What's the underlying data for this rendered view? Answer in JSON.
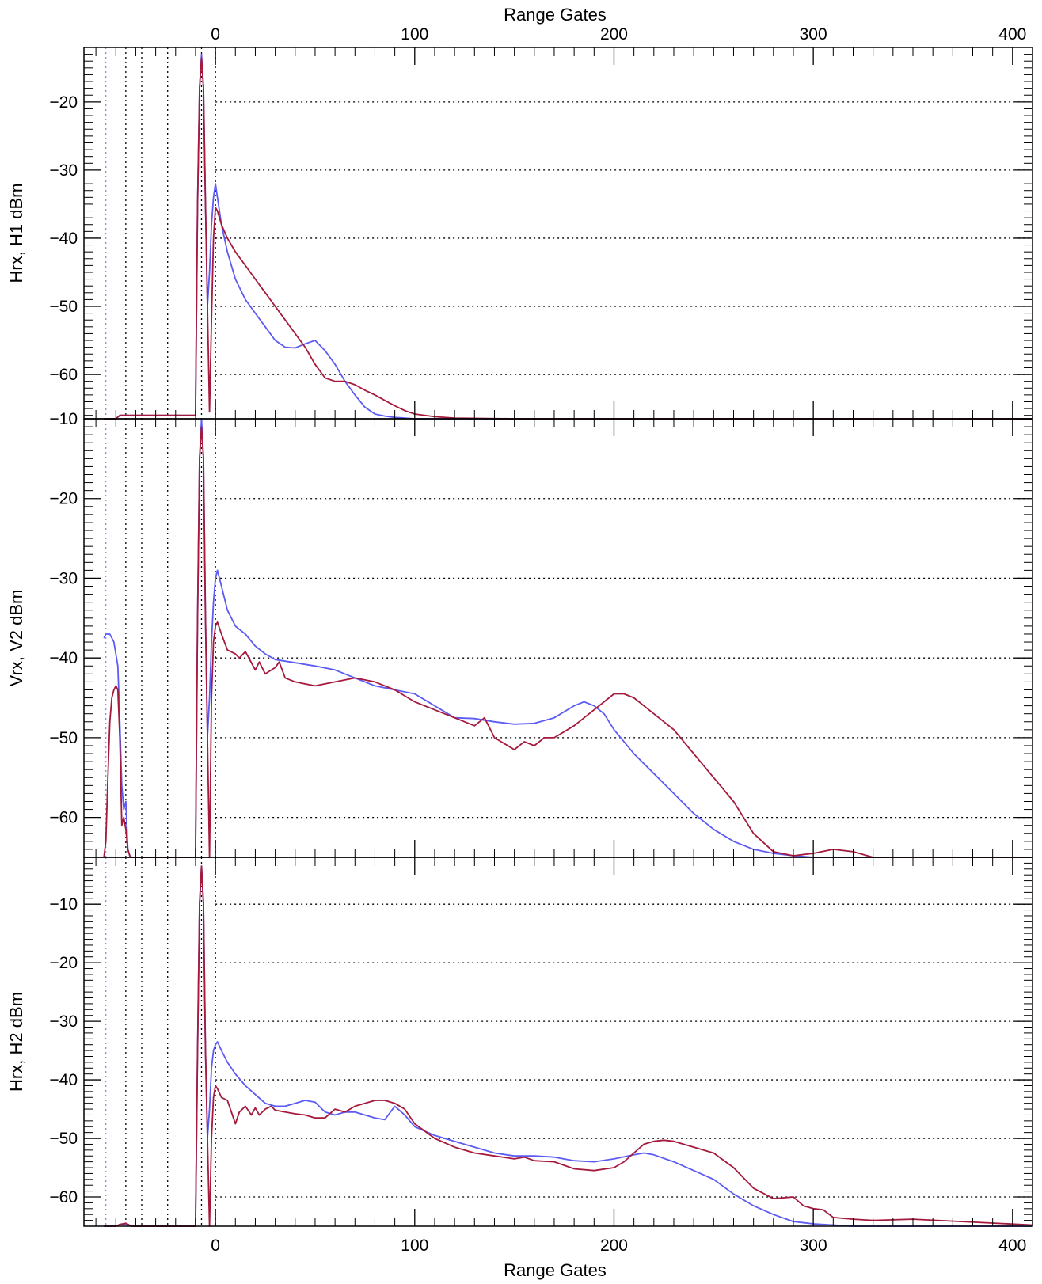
{
  "chart_data": {
    "type": "line",
    "top_axis_title": "Range Gates",
    "xlabel": "Range Gates",
    "xlim": [
      -66,
      410
    ],
    "x_ticks": [
      0,
      100,
      200,
      300,
      400
    ],
    "grid": "dotted horizontal at major y ticks",
    "vertical_markers": [
      -55,
      -45,
      -37,
      -24,
      -7,
      0
    ],
    "series_colors": {
      "blue": "#5c5cf5",
      "red": "#a51a3c"
    },
    "panels": [
      {
        "ylabel": "Hrx, H1 dBm",
        "ylim": [
          -66.5,
          -12
        ],
        "y_ticks": [
          -20,
          -30,
          -40,
          -50,
          -60
        ],
        "series": [
          {
            "color": "blue",
            "x": [
              -56,
              -50,
              -48,
              -45,
              -42,
              -30,
              -10,
              -9,
              -8,
              -7,
              -6,
              -5,
              -4,
              -3,
              -2,
              -1,
              0,
              1,
              3,
              6,
              10,
              15,
              20,
              25,
              30,
              35,
              40,
              45,
              50,
              55,
              60,
              65,
              70,
              75,
              80,
              85,
              90,
              95,
              100,
              110,
              120,
              150,
              200,
              300,
              410
            ],
            "y": [
              -66.5,
              -66.5,
              -66,
              -66,
              -66,
              -66,
              -66,
              -35,
              -18,
              -13,
              -18,
              -35,
              -50,
              -45,
              -38,
              -34,
              -32,
              -34,
              -38,
              -42,
              -46,
              -49,
              -51,
              -53,
              -55,
              -56,
              -56.1,
              -55.5,
              -55,
              -56.5,
              -58.5,
              -61,
              -63,
              -64.8,
              -65.8,
              -66.1,
              -66.3,
              -66.4,
              -66.5,
              -66.5,
              -66.5,
              -66.5,
              -66.5,
              -66.5,
              -66.5
            ]
          },
          {
            "color": "red",
            "x": [
              -56,
              -50,
              -48,
              -45,
              -42,
              -30,
              -10,
              -9,
              -8,
              -7,
              -6,
              -5,
              -4,
              -3,
              -2,
              -1,
              0,
              1,
              3,
              6,
              10,
              15,
              20,
              25,
              30,
              35,
              40,
              45,
              50,
              55,
              60,
              65,
              70,
              75,
              80,
              85,
              90,
              95,
              100,
              110,
              120,
              150,
              200,
              300,
              410
            ],
            "y": [
              -66.5,
              -66.5,
              -66,
              -66,
              -66,
              -66,
              -66,
              -35,
              -18,
              -13.5,
              -18,
              -35,
              -50,
              -65.5,
              -52,
              -40,
              -35.5,
              -36,
              -38,
              -40,
              -42,
              -44,
              -46,
              -48,
              -50,
              -52,
              -54,
              -56,
              -58.5,
              -60.5,
              -61,
              -61,
              -61.5,
              -62.3,
              -63,
              -63.8,
              -64.6,
              -65.3,
              -65.8,
              -66.2,
              -66.4,
              -66.5,
              -66.5,
              -66.5,
              -66.5
            ]
          }
        ]
      },
      {
        "ylabel": "Vrx, V2 dBm",
        "ylim": [
          -65,
          -10
        ],
        "y_ticks": [
          -10,
          -20,
          -30,
          -40,
          -50,
          -60
        ],
        "series": [
          {
            "color": "blue",
            "x": [
              -56,
              -55,
              -53,
              -51,
              -49,
              -48,
              -47,
              -46,
              -45,
              -44,
              -43,
              -42,
              -40,
              -30,
              -10,
              -9,
              -8,
              -7,
              -6,
              -5,
              -4,
              -3,
              -2,
              -1,
              0,
              1,
              3,
              6,
              10,
              15,
              20,
              25,
              30,
              40,
              50,
              60,
              70,
              80,
              90,
              100,
              110,
              120,
              130,
              140,
              150,
              160,
              170,
              180,
              185,
              190,
              195,
              200,
              210,
              220,
              230,
              240,
              250,
              260,
              270,
              280,
              290,
              300,
              310,
              320,
              410
            ],
            "y": [
              -37.5,
              -37,
              -37,
              -38,
              -41,
              -48,
              -56,
              -59,
              -58,
              -64,
              -64.8,
              -65,
              -65,
              -65,
              -65,
              -35,
              -15,
              -10,
              -15,
              -35,
              -50,
              -45,
              -38,
              -33,
              -30,
              -29,
              -31,
              -34,
              -36,
              -37,
              -38.5,
              -39.5,
              -40.2,
              -40.6,
              -41,
              -41.5,
              -42.5,
              -43.5,
              -44,
              -44.5,
              -46,
              -47.5,
              -47.6,
              -48,
              -48.3,
              -48.2,
              -47.5,
              -46,
              -45.5,
              -46,
              -47,
              -49,
              -52,
              -54.5,
              -57,
              -59.5,
              -61.5,
              -63,
              -64,
              -64.5,
              -64.8,
              -65,
              -65,
              -65,
              -65
            ]
          },
          {
            "color": "red",
            "x": [
              -56,
              -55,
              -54,
              -53,
              -52,
              -51,
              -50,
              -49,
              -48,
              -47,
              -46,
              -45,
              -44,
              -43,
              -42,
              -30,
              -10,
              -9,
              -8,
              -7,
              -6,
              -5,
              -4,
              -3,
              -2,
              -1,
              0,
              1,
              3,
              6,
              10,
              12,
              15,
              20,
              22,
              25,
              30,
              32,
              35,
              40,
              50,
              60,
              70,
              80,
              90,
              100,
              110,
              120,
              130,
              135,
              140,
              150,
              155,
              160,
              165,
              170,
              180,
              190,
              200,
              205,
              210,
              220,
              230,
              240,
              250,
              260,
              270,
              280,
              290,
              300,
              310,
              320,
              330,
              410
            ],
            "y": [
              -65,
              -63,
              -55,
              -48,
              -45,
              -44,
              -43.5,
              -44,
              -50,
              -61,
              -60,
              -61.5,
              -64,
              -64.8,
              -65,
              -65,
              -65,
              -35,
              -15,
              -11,
              -15,
              -35,
              -50,
              -65,
              -45,
              -38,
              -36,
              -35.5,
              -37,
              -39,
              -39.5,
              -40,
              -39.2,
              -41.5,
              -40.5,
              -42,
              -41.2,
              -40.5,
              -42.5,
              -43,
              -43.5,
              -43,
              -42.5,
              -43,
              -44,
              -45.5,
              -46.5,
              -47.5,
              -48.5,
              -47.5,
              -50,
              -51.5,
              -50.5,
              -51,
              -50,
              -50,
              -48.5,
              -46.5,
              -44.5,
              -44.5,
              -45,
              -47,
              -49,
              -52,
              -55,
              -58,
              -62,
              -64.3,
              -64.8,
              -64.5,
              -64,
              -64.3,
              -65,
              -65
            ]
          }
        ]
      },
      {
        "ylabel": "Hrx, H2 dBm",
        "ylim": [
          -65,
          -2
        ],
        "y_ticks": [
          -10,
          -20,
          -30,
          -40,
          -50,
          -60
        ],
        "series": [
          {
            "color": "blue",
            "x": [
              -56,
              -50,
              -48,
              -45,
              -42,
              -30,
              -10,
              -9,
              -8,
              -7,
              -6,
              -5,
              -4,
              -3,
              -2,
              -1,
              0,
              1,
              3,
              6,
              10,
              15,
              20,
              25,
              30,
              35,
              40,
              45,
              50,
              55,
              60,
              65,
              70,
              75,
              80,
              85,
              90,
              95,
              100,
              110,
              120,
              130,
              140,
              150,
              160,
              170,
              180,
              190,
              200,
              210,
              215,
              220,
              230,
              240,
              250,
              260,
              270,
              280,
              290,
              300,
              310,
              320,
              330,
              340,
              350,
              410
            ],
            "y": [
              -65,
              -65,
              -64.7,
              -64.7,
              -65,
              -65,
              -65,
              -35,
              -10,
              -3.5,
              -10,
              -35,
              -50,
              -45,
              -38,
              -35,
              -34,
              -33.5,
              -35,
              -37,
              -39,
              -41,
              -42.5,
              -44,
              -44.5,
              -44.5,
              -44,
              -43.5,
              -43.8,
              -45.5,
              -46,
              -45.5,
              -45.5,
              -46,
              -46.5,
              -46.8,
              -44.5,
              -46,
              -48,
              -49.5,
              -50.5,
              -51.5,
              -52.5,
              -53,
              -53,
              -53.2,
              -53.8,
              -54,
              -53.5,
              -52.8,
              -52.5,
              -52.8,
              -54,
              -55.5,
              -57,
              -59.5,
              -61.5,
              -63,
              -64.2,
              -64.6,
              -64.8,
              -65,
              -65,
              -65,
              -65,
              -65
            ]
          },
          {
            "color": "red",
            "x": [
              -56,
              -50,
              -48,
              -45,
              -42,
              -30,
              -10,
              -9,
              -8,
              -7,
              -6,
              -5,
              -4,
              -3,
              -2,
              -1,
              0,
              1,
              3,
              6,
              10,
              12,
              15,
              18,
              20,
              22,
              25,
              28,
              30,
              35,
              40,
              45,
              50,
              55,
              60,
              65,
              70,
              75,
              80,
              85,
              90,
              95,
              100,
              110,
              120,
              130,
              140,
              150,
              155,
              160,
              170,
              180,
              190,
              200,
              205,
              210,
              215,
              220,
              225,
              230,
              240,
              250,
              260,
              270,
              280,
              290,
              295,
              300,
              305,
              310,
              320,
              330,
              350,
              410
            ],
            "y": [
              -65,
              -65,
              -64.7,
              -64.5,
              -65,
              -65,
              -65,
              -35,
              -10,
              -3.5,
              -10,
              -35,
              -50,
              -65,
              -50,
              -43,
              -41,
              -41.5,
              -43,
              -43.5,
              -47.5,
              -45.5,
              -44.5,
              -46,
              -44.8,
              -46,
              -45,
              -44.5,
              -45.2,
              -45.5,
              -45.8,
              -46,
              -46.5,
              -46.5,
              -45,
              -45.5,
              -44.5,
              -44,
              -43.5,
              -43.5,
              -44,
              -45,
              -47.5,
              -50,
              -51.5,
              -52.5,
              -53,
              -53.5,
              -53.2,
              -53.8,
              -54,
              -55.2,
              -55.5,
              -55,
              -54,
              -52.5,
              -51,
              -50.5,
              -50.3,
              -50.5,
              -51.5,
              -52.5,
              -55,
              -58.5,
              -60.3,
              -60,
              -61.5,
              -62,
              -62.2,
              -63.5,
              -63.8,
              -64,
              -63.8,
              -64.8
            ]
          }
        ]
      }
    ]
  }
}
